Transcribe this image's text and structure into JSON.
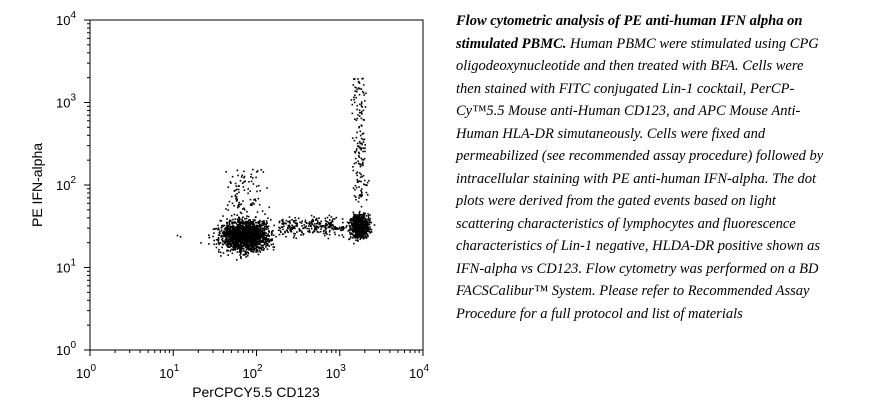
{
  "chart_data": {
    "type": "scatter",
    "title": "",
    "xlabel": "PerCPCY5.5 CD123",
    "ylabel": "PE IFN-alpha",
    "xscale": "log",
    "yscale": "log",
    "xlim": [
      1,
      10000
    ],
    "ylim": [
      1,
      10000
    ],
    "x_ticks": [
      "10^0",
      "10^1",
      "10^2",
      "10^3",
      "10^4"
    ],
    "y_ticks": [
      "10^0",
      "10^1",
      "10^2",
      "10^3",
      "10^4"
    ],
    "grid": false,
    "populations": [
      {
        "name": "",
        "center_x": 70,
        "center_y": 25,
        "approx_x_range": [
          10,
          300
        ],
        "approx_y_range": [
          7,
          250
        ]
      },
      {
        "name": "",
        "center_x": 1700,
        "center_y": 32,
        "approx_x_range": [
          700,
          3000
        ],
        "approx_y_range": [
          10,
          2000
        ]
      }
    ]
  },
  "caption": {
    "title": "Flow cytometric analysis of PE anti-human IFN alpha on stimulated PBMC.",
    "body": "Human PBMC were stimulated using CPG oligodeoxynucleotide and then treated with BFA.  Cells were then stained with FITC conjugated Lin-1 cocktail, PerCP-Cy™5.5 Mouse anti-Human CD123, and APC  Mouse Anti-Human HLA-DR simutaneously.  Cells were fixed and permeabilized (see recommended assay procedure) followed by intracellular staining with PE anti-human IFN-alpha. The dot plots were derived from the gated events based on light scattering characteristics of lymphocytes and fluorescence characteristics of Lin-1 negative, HLDA-DR positive shown as IFN-alpha vs CD123. Flow cytometry was performed on a BD FACSCalibur™ System. Please refer to Recommended Assay Procedure for a full protocol and list of materials"
  }
}
